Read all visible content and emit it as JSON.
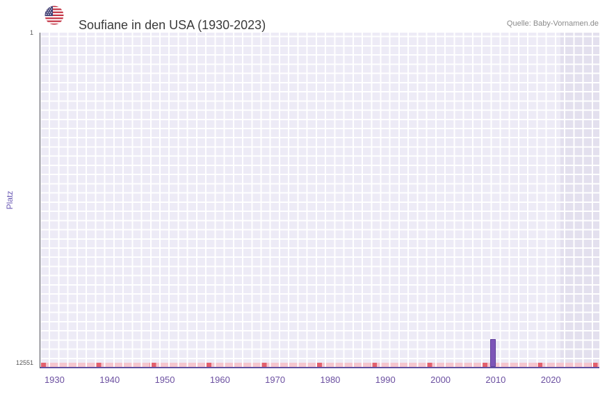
{
  "header": {
    "title": "Soufiane in den USA (1930-2023)",
    "source": "Quelle: Baby-Vornamen.de"
  },
  "chart_data": {
    "type": "bar",
    "title": "Soufiane in den USA (1930-2023)",
    "source": "Quelle: Baby-Vornamen.de",
    "xlabel": "",
    "ylabel": "Platz",
    "y_axis": {
      "min": 1,
      "max": 12551,
      "inverted": true,
      "top_tick": "1",
      "bottom_tick": "12551"
    },
    "x_domain": [
      1927.3,
      2028.8
    ],
    "x_ticks": [
      "1930",
      "1940",
      "1950",
      "1960",
      "1970",
      "1980",
      "1990",
      "2000",
      "2010",
      "2020"
    ],
    "bars": [
      {
        "year": 2009,
        "rank": 11460
      }
    ],
    "unranked_marks": {
      "description": "small pink/red marks along the baseline for years without a ranking",
      "light_color": "#f5c6cf",
      "dark_color": "#e2606e"
    },
    "highlight_band": {
      "x_start": 2021.8,
      "x_end": 2028.8,
      "color": "#e3e0ee"
    },
    "grid": true,
    "colors": {
      "plot_bg": "#edebf6",
      "grid": "#ffffff",
      "bar": "#7d55b8",
      "bar_border": "#5e3e99",
      "x_axis_line": "#5f4fa0",
      "y_axis_line": "#4a4a55",
      "x_tick_label": "#6b4fa0",
      "y_tick_label": "#555555",
      "ylabel": "#6b5bb5",
      "title": "#3a3a3a",
      "source": "#8a8a8a"
    }
  }
}
